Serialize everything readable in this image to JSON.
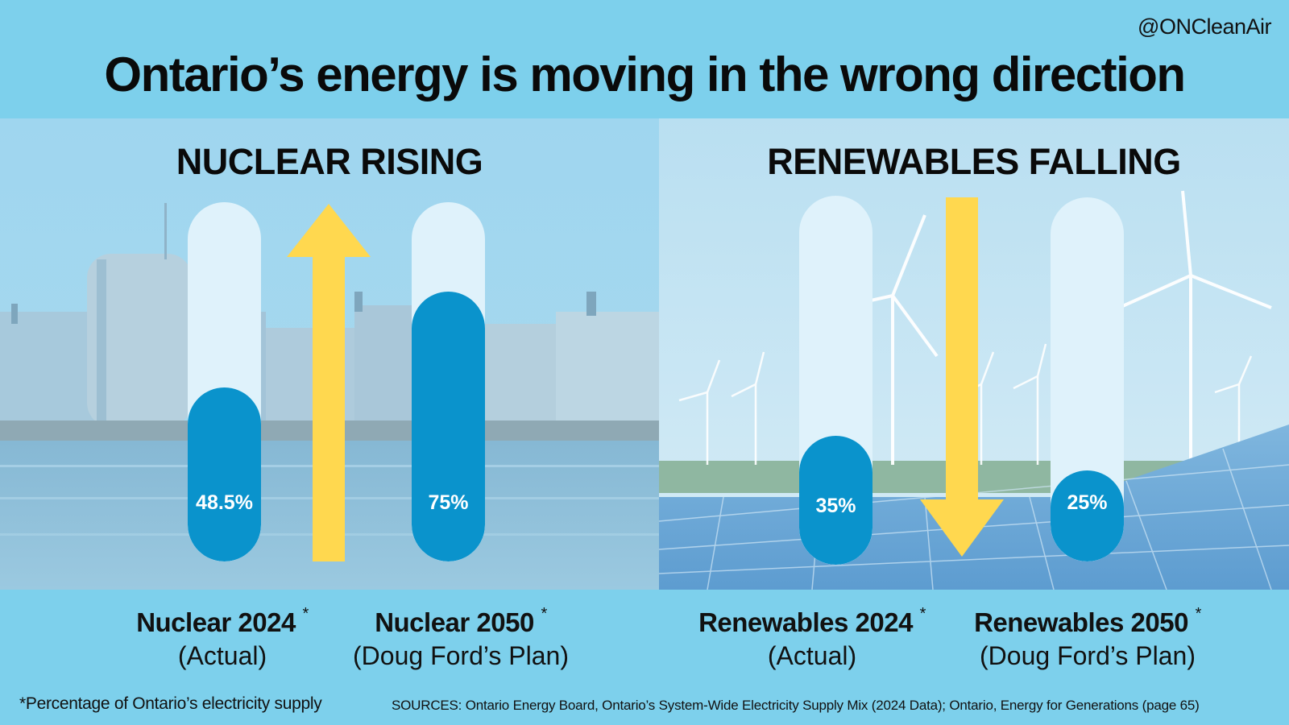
{
  "handle": "@ONCleanAir",
  "headline": "Ontario’s energy is moving in the wrong direction",
  "colors": {
    "background": "#7dd0ec",
    "tube_empty": "#dff2fb",
    "tube_fill": "#0a93cc",
    "arrow": "#ffd84f"
  },
  "chart_data": [
    {
      "type": "bar",
      "title": "NUCLEAR RISING",
      "trend": "up",
      "ylim": [
        0,
        100
      ],
      "categories": [
        "Nuclear 2024",
        "Nuclear 2050"
      ],
      "subcategories": [
        "(Actual)",
        "(Doug Ford’s Plan)"
      ],
      "values": [
        48.5,
        75
      ],
      "value_labels": [
        "48.5%",
        "75%"
      ],
      "asterisk": "*"
    },
    {
      "type": "bar",
      "title": "RENEWABLES FALLING",
      "trend": "down",
      "ylim": [
        0,
        100
      ],
      "categories": [
        "Renewables 2024",
        "Renewables 2050"
      ],
      "subcategories": [
        "(Actual)",
        "(Doug Ford’s Plan)"
      ],
      "values": [
        35,
        25
      ],
      "value_labels": [
        "35%",
        "25%"
      ],
      "asterisk": "*"
    }
  ],
  "footnote": "*Percentage of Ontario’s electricity supply",
  "sources": "SOURCES: Ontario Energy Board, Ontario’s System-Wide Electricity Supply Mix (2024 Data); Ontario, Energy for Generations (page 65)"
}
